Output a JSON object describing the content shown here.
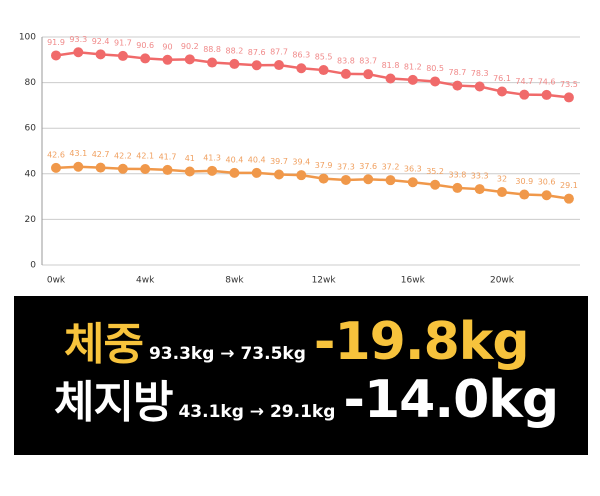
{
  "chart_data": {
    "type": "line",
    "categories": [
      "0wk",
      null,
      null,
      null,
      "4wk",
      null,
      null,
      null,
      "8wk",
      null,
      null,
      null,
      "12wk",
      null,
      null,
      null,
      "16wk",
      null,
      null,
      null,
      "20wk",
      null,
      null,
      null
    ],
    "series": [
      {
        "color": "#f06a6a",
        "label_color": "#f08a8a",
        "values": [
          91.9,
          93.3,
          92.4,
          91.7,
          90.6,
          90,
          90.2,
          88.8,
          88.2,
          87.6,
          87.7,
          86.3,
          85.5,
          83.8,
          83.7,
          81.8,
          81.2,
          80.5,
          78.7,
          78.3,
          76.1,
          74.7,
          74.6,
          73.5
        ]
      },
      {
        "color": "#f0984a",
        "label_color": "#f0a060",
        "values": [
          42.6,
          43.1,
          42.7,
          42.2,
          42.1,
          41.7,
          41,
          41.3,
          40.4,
          40.4,
          39.7,
          39.4,
          37.9,
          37.3,
          37.6,
          37.2,
          36.3,
          35.2,
          33.8,
          33.3,
          32,
          30.9,
          30.6,
          29.1
        ]
      }
    ],
    "ylim": [
      0,
      100
    ],
    "yticks": [
      0,
      20,
      40,
      60,
      80,
      100
    ],
    "grid": true
  },
  "banner": {
    "rows": [
      {
        "label": "체중",
        "range": "93.3kg → 73.5kg",
        "change": "-19.8kg",
        "color": "#f7c33c"
      },
      {
        "label": "체지방",
        "range": "43.1kg → 29.1kg",
        "change": "-14.0kg",
        "color": "#ffffff"
      }
    ]
  }
}
